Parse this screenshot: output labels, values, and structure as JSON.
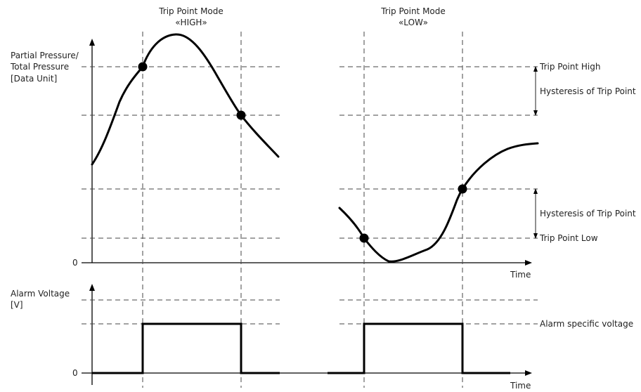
{
  "modes": {
    "high": {
      "line1": "Trip Point Mode",
      "line2": "«HIGH»"
    },
    "low": {
      "line1": "Trip Point Mode",
      "line2": "«LOW»"
    }
  },
  "top_axis": {
    "label_line1": "Partial Pressure/",
    "label_line2": "Total Pressure",
    "label_line3": "[Data Unit]",
    "zero": "0",
    "x_label": "Time"
  },
  "bottom_axis": {
    "label_line1": "Alarm Voltage",
    "label_line2": "[V]",
    "zero": "0",
    "x_label": "Time"
  },
  "annotations": {
    "trip_point_high": "Trip Point High",
    "hysteresis_high": "Hysteresis of Trip Point",
    "hysteresis_low": "Hysteresis of Trip Point",
    "trip_point_low": "Trip Point Low",
    "alarm_voltage": "Alarm specific voltage"
  }
}
